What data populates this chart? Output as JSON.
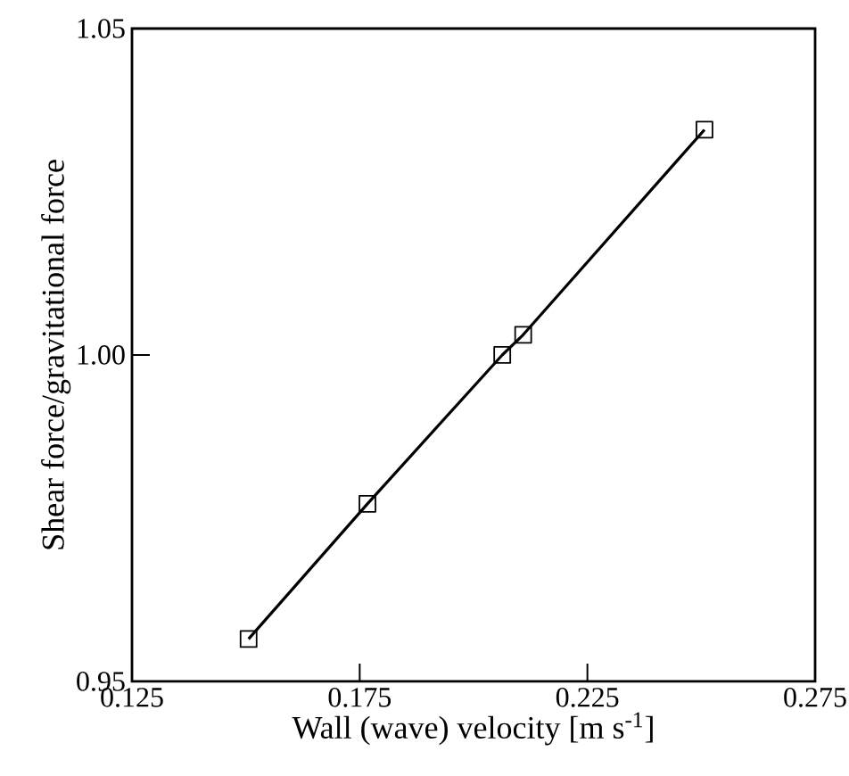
{
  "chart_data": {
    "type": "line",
    "xlabel": "Wall (wave) velocity [m s$^{-1}$]",
    "ylabel": "Shear force/gravitational force",
    "x": [
      0.1506,
      0.1767,
      0.2063,
      0.2109,
      0.2507
    ],
    "values": [
      0.9565,
      0.9772,
      1.0,
      1.0031,
      1.0345
    ],
    "color": "#000000",
    "marker": "square",
    "line_style": "solid",
    "xlim": [
      0.125,
      0.275
    ],
    "ylim": [
      0.95,
      1.05
    ],
    "xticks": [
      0.125,
      0.175,
      0.225,
      0.275
    ],
    "yticks": [
      0.95,
      {
        "value": 1.0,
        "label": "1.00"
      },
      1.05
    ]
  }
}
